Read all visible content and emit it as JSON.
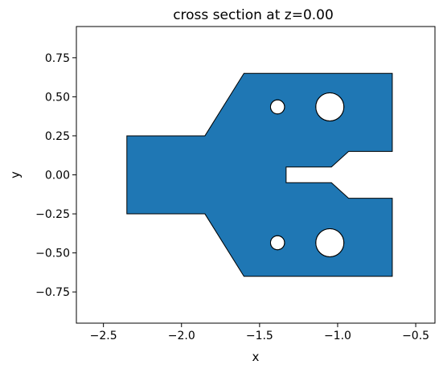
{
  "chart_data": {
    "type": "cross-section",
    "title": "cross section at z=0.00",
    "xlabel": "x",
    "ylabel": "y",
    "xlim": [
      -2.65,
      -0.4
    ],
    "ylim": [
      -0.95,
      0.95
    ],
    "x_ticks": [
      -2.5,
      -2.0,
      -1.5,
      -1.0,
      -0.5
    ],
    "x_tick_labels": [
      "−2.5",
      "−2.0",
      "−1.5",
      "−1.0",
      "−0.5"
    ],
    "y_ticks": [
      0.75,
      0.5,
      0.25,
      0.0,
      -0.25,
      -0.5,
      -0.75
    ],
    "y_tick_labels": [
      "0.75",
      "0.50",
      "0.25",
      "0.00",
      "−0.25",
      "−0.50",
      "−0.75"
    ],
    "grid": false,
    "polygon": [
      [
        -2.35,
        0.25
      ],
      [
        -1.85,
        0.25
      ],
      [
        -1.6,
        0.65
      ],
      [
        -0.65,
        0.65
      ],
      [
        -0.65,
        0.15
      ],
      [
        -0.93,
        0.15
      ],
      [
        -1.04,
        0.05
      ],
      [
        -1.33,
        0.05
      ],
      [
        -1.33,
        -0.05
      ],
      [
        -1.04,
        -0.05
      ],
      [
        -0.93,
        -0.15
      ],
      [
        -0.65,
        -0.15
      ],
      [
        -0.65,
        -0.65
      ],
      [
        -1.6,
        -0.65
      ],
      [
        -1.85,
        -0.25
      ],
      [
        -2.35,
        -0.25
      ]
    ],
    "holes": [
      {
        "cx": -1.385,
        "cy": 0.435,
        "r": 0.045
      },
      {
        "cx": -1.05,
        "cy": 0.435,
        "r": 0.09
      },
      {
        "cx": -1.385,
        "cy": -0.435,
        "r": 0.045
      },
      {
        "cx": -1.05,
        "cy": -0.435,
        "r": 0.09
      }
    ],
    "fill_color": "#1f77b4",
    "edge_color": "#000000"
  }
}
